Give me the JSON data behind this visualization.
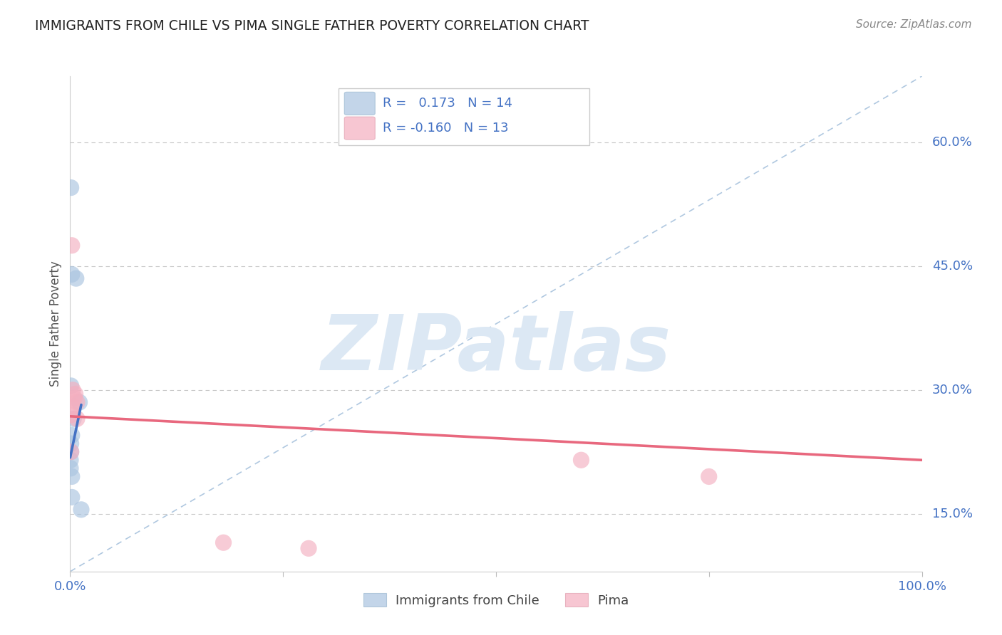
{
  "title": "IMMIGRANTS FROM CHILE VS PIMA SINGLE FATHER POVERTY CORRELATION CHART",
  "source": "Source: ZipAtlas.com",
  "ylabel": "Single Father Poverty",
  "xlim": [
    0.0,
    1.0
  ],
  "ylim": [
    0.08,
    0.68
  ],
  "yticks": [
    0.15,
    0.3,
    0.45,
    0.6
  ],
  "ytick_labels": [
    "15.0%",
    "30.0%",
    "45.0%",
    "60.0%"
  ],
  "xtick_labels": [
    "0.0%",
    "",
    "",
    "",
    "100.0%"
  ],
  "legend_labels": [
    "Immigrants from Chile",
    "Pima"
  ],
  "R_blue": 0.173,
  "N_blue": 14,
  "R_pink": -0.16,
  "N_pink": 13,
  "blue_color": "#aac4e0",
  "pink_color": "#f4afc0",
  "blue_line_color": "#4472c4",
  "pink_line_color": "#e8687e",
  "axis_label_color": "#4472c4",
  "title_color": "#222222",
  "grid_color": "#c8c8c8",
  "watermark_color": "#dce8f4",
  "blue_scatter_x": [
    0.002,
    0.001,
    0.007,
    0.011,
    0.001,
    0.004,
    0.002,
    0.001,
    0.001,
    0.0005,
    0.0005,
    0.002,
    0.002,
    0.013
  ],
  "blue_scatter_y": [
    0.44,
    0.545,
    0.435,
    0.285,
    0.305,
    0.265,
    0.245,
    0.235,
    0.225,
    0.215,
    0.205,
    0.195,
    0.17,
    0.155
  ],
  "pink_scatter_x": [
    0.002,
    0.003,
    0.006,
    0.005,
    0.008,
    0.003,
    0.002,
    0.001,
    0.008,
    0.6,
    0.75,
    0.18,
    0.28
  ],
  "pink_scatter_y": [
    0.475,
    0.3,
    0.295,
    0.29,
    0.285,
    0.28,
    0.27,
    0.225,
    0.265,
    0.215,
    0.195,
    0.115,
    0.108
  ],
  "blue_trend_x": [
    0.0,
    0.013
  ],
  "blue_trend_y": [
    0.218,
    0.282
  ],
  "pink_trend_x": [
    0.0,
    1.0
  ],
  "pink_trend_y": [
    0.268,
    0.215
  ],
  "diag_line_x": [
    0.0,
    1.0
  ],
  "diag_line_y": [
    0.08,
    0.68
  ]
}
